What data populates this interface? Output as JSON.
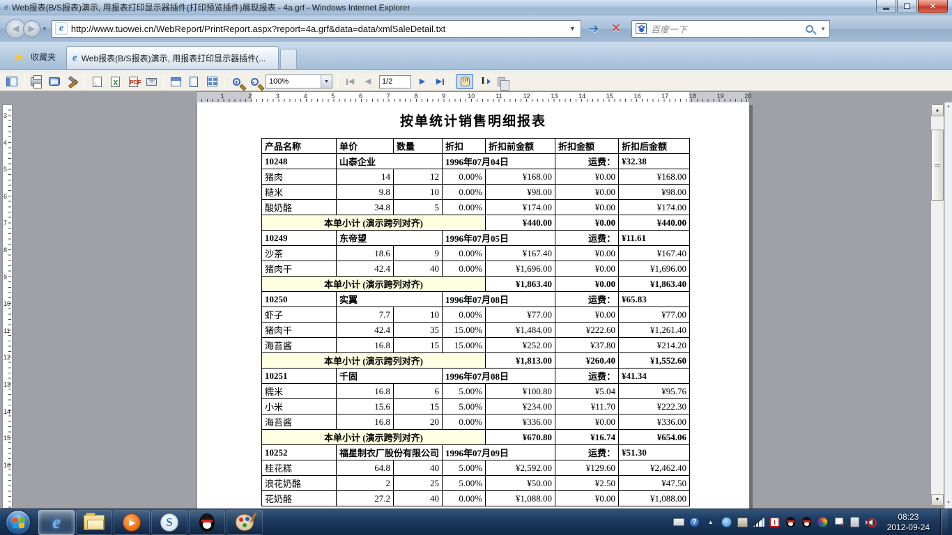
{
  "window": {
    "title": "Web报表(B/S报表)演示, 用报表打印显示器插件(打印预览插件)展现报表 - 4a.grf - Windows Internet Explorer",
    "url": "http://www.tuowei.cn/WebReport/PrintReport.aspx?report=4a.grf&data=data/xmlSaleDetail.txt",
    "favorites_label": "收藏夹",
    "tab_title": "Web报表(B/S报表)演示, 用报表打印显示器插件(...",
    "search_placeholder": "百度一下"
  },
  "toolbar": {
    "zoom_value": "100%",
    "page_value": "1/2",
    "export_marks": {
      "save": "↓",
      "excel": "X",
      "pdf": "PDF",
      "zoom_in": "+",
      "zoom_out": "-",
      "ibeam": "I"
    }
  },
  "rulers": {
    "horizontal": [
      1,
      2,
      3,
      4,
      5,
      6,
      7,
      8,
      9,
      10,
      11,
      12,
      13,
      14,
      15,
      16,
      17,
      18,
      19,
      20
    ],
    "vertical": [
      3,
      4,
      5,
      6,
      7,
      8,
      9,
      10,
      11,
      12,
      13,
      14,
      15,
      16
    ]
  },
  "report": {
    "title": "按单统计销售明细报表",
    "columns": [
      "产品名称",
      "单价",
      "数量",
      "折扣",
      "折扣前金额",
      "折扣金额",
      "折扣后金额"
    ],
    "freight_label": "运费：",
    "subtotal_label": "本单小计 (演示跨列对齐)",
    "groups": [
      {
        "order_id": "10248",
        "customer": "山泰企业",
        "date": "1996年07月04日",
        "freight": "¥32.38",
        "rows": [
          [
            "猪肉",
            "14",
            "12",
            "0.00%",
            "¥168.00",
            "¥0.00",
            "¥168.00"
          ],
          [
            "糙米",
            "9.8",
            "10",
            "0.00%",
            "¥98.00",
            "¥0.00",
            "¥98.00"
          ],
          [
            "酸奶酪",
            "34.8",
            "5",
            "0.00%",
            "¥174.00",
            "¥0.00",
            "¥174.00"
          ]
        ],
        "subtotal": [
          "¥440.00",
          "¥0.00",
          "¥440.00"
        ]
      },
      {
        "order_id": "10249",
        "customer": "东帝望",
        "date": "1996年07月05日",
        "freight": "¥11.61",
        "rows": [
          [
            "沙茶",
            "18.6",
            "9",
            "0.00%",
            "¥167.40",
            "¥0.00",
            "¥167.40"
          ],
          [
            "猪肉干",
            "42.4",
            "40",
            "0.00%",
            "¥1,696.00",
            "¥0.00",
            "¥1,696.00"
          ]
        ],
        "subtotal": [
          "¥1,863.40",
          "¥0.00",
          "¥1,863.40"
        ]
      },
      {
        "order_id": "10250",
        "customer": "实翼",
        "date": "1996年07月08日",
        "freight": "¥65.83",
        "rows": [
          [
            "虾子",
            "7.7",
            "10",
            "0.00%",
            "¥77.00",
            "¥0.00",
            "¥77.00"
          ],
          [
            "猪肉干",
            "42.4",
            "35",
            "15.00%",
            "¥1,484.00",
            "¥222.60",
            "¥1,261.40"
          ],
          [
            "海苔酱",
            "16.8",
            "15",
            "15.00%",
            "¥252.00",
            "¥37.80",
            "¥214.20"
          ]
        ],
        "subtotal": [
          "¥1,813.00",
          "¥260.40",
          "¥1,552.60"
        ]
      },
      {
        "order_id": "10251",
        "customer": "千固",
        "date": "1996年07月08日",
        "freight": "¥41.34",
        "rows": [
          [
            "糯米",
            "16.8",
            "6",
            "5.00%",
            "¥100.80",
            "¥5.04",
            "¥95.76"
          ],
          [
            "小米",
            "15.6",
            "15",
            "5.00%",
            "¥234.00",
            "¥11.70",
            "¥222.30"
          ],
          [
            "海苔酱",
            "16.8",
            "20",
            "0.00%",
            "¥336.00",
            "¥0.00",
            "¥336.00"
          ]
        ],
        "subtotal": [
          "¥670.80",
          "¥16.74",
          "¥654.06"
        ]
      },
      {
        "order_id": "10252",
        "customer": "福星制衣厂股份有限公司",
        "date": "1996年07月09日",
        "freight": "¥51.30",
        "rows": [
          [
            "桂花糕",
            "64.8",
            "40",
            "5.00%",
            "¥2,592.00",
            "¥129.60",
            "¥2,462.40"
          ],
          [
            "浪花奶酪",
            "2",
            "25",
            "5.00%",
            "¥50.00",
            "¥2.50",
            "¥47.50"
          ],
          [
            "花奶酪",
            "27.2",
            "40",
            "0.00%",
            "¥1,088.00",
            "¥0.00",
            "¥1,088.00"
          ]
        ],
        "subtotal": null
      }
    ]
  },
  "taskbar": {
    "time": "08:23",
    "date": "2012-09-24"
  }
}
